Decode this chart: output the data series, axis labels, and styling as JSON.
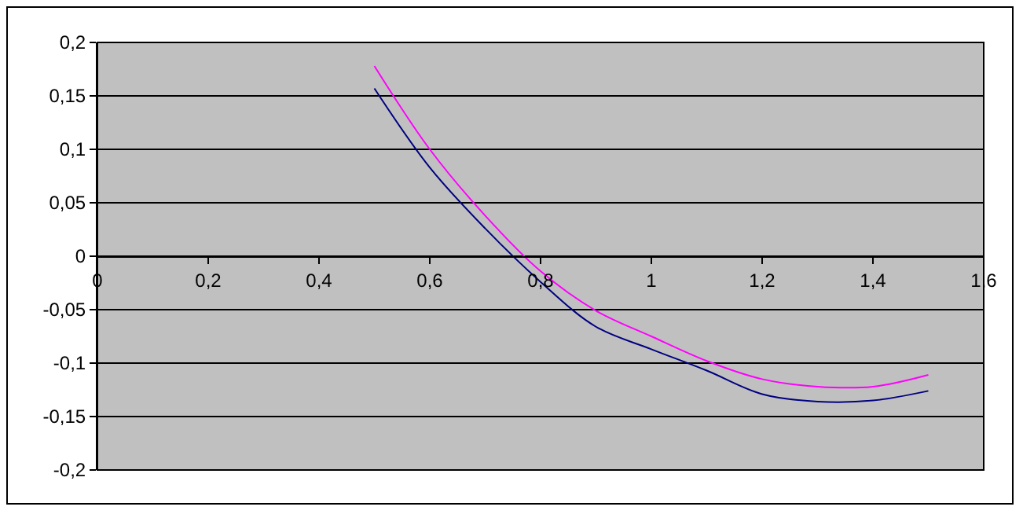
{
  "chart_data": {
    "type": "line",
    "x": [
      0.5,
      0.6,
      0.7,
      0.8,
      0.9,
      1.0,
      1.1,
      1.2,
      1.3,
      1.4,
      1.5
    ],
    "series": [
      {
        "color": "#ff00ff",
        "values": [
          0.178,
          0.1,
          0.038,
          -0.014,
          -0.051,
          -0.075,
          -0.098,
          -0.115,
          -0.122,
          -0.122,
          -0.111
        ]
      },
      {
        "color": "#000080",
        "values": [
          0.157,
          0.083,
          0.026,
          -0.024,
          -0.066,
          -0.087,
          -0.107,
          -0.129,
          -0.136,
          -0.135,
          -0.126
        ]
      }
    ],
    "xlim": [
      0,
      1.6
    ],
    "xticks": [
      0,
      {
        "value": 0.2,
        "label": "0,2"
      },
      {
        "value": 0.4,
        "label": "0,4"
      },
      {
        "value": 0.6,
        "label": "0,6"
      },
      {
        "value": 0.8,
        "label": "0,8"
      },
      1,
      {
        "value": 1.2,
        "label": "1,2"
      },
      {
        "value": 1.4,
        "label": "1,4"
      },
      {
        "value": 1.6,
        "label": "1,6"
      }
    ],
    "ylim": [
      -0.2,
      0.2
    ],
    "yticks": [
      {
        "value": -0.2,
        "label": "-0,2"
      },
      {
        "value": -0.15,
        "label": "-0,15"
      },
      {
        "value": -0.1,
        "label": "-0,1"
      },
      {
        "value": -0.05,
        "label": "-0,05"
      },
      0,
      {
        "value": 0.05,
        "label": "0,05"
      },
      {
        "value": 0.1,
        "label": "0,1"
      },
      {
        "value": 0.15,
        "label": "0,15"
      },
      {
        "value": 0.2,
        "label": "0,2"
      }
    ],
    "grid": "y",
    "marker": "none",
    "line_style": "solid"
  }
}
